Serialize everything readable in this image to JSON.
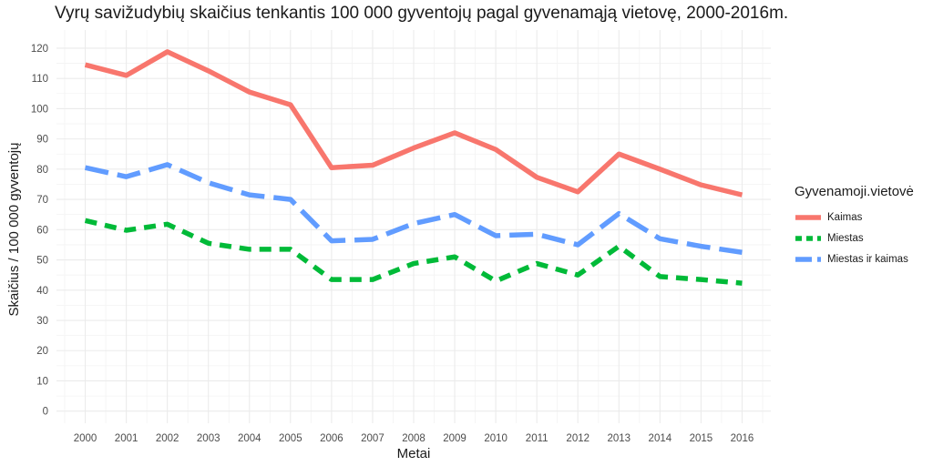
{
  "title": "Vyrų savižudybių skaičius tenkantis 100 000 gyventojų pagal gyvenamąją vietovę, 2000-2016m.",
  "chart_data": {
    "type": "line",
    "title": "Vyrų savižudybių skaičius tenkantis 100 000 gyventojų pagal gyvenamąją vietovę, 2000-2016m.",
    "xlabel": "Metai",
    "ylabel": "Skaičius / 100 000 gyventojų",
    "x": [
      2000,
      2001,
      2002,
      2003,
      2004,
      2005,
      2006,
      2007,
      2008,
      2009,
      2010,
      2011,
      2012,
      2013,
      2014,
      2015,
      2016
    ],
    "x_ticks": [
      "2000",
      "2001",
      "2002",
      "2003",
      "2004",
      "2005",
      "2006",
      "2007",
      "2008",
      "2009",
      "2010",
      "2011",
      "2012",
      "2013",
      "2014",
      "2015",
      "2016"
    ],
    "y_ticks": [
      "0",
      "10",
      "20",
      "30",
      "40",
      "50",
      "60",
      "70",
      "80",
      "90",
      "100",
      "110",
      "120"
    ],
    "ylim": [
      -4,
      126
    ],
    "grid": true,
    "legend_title": "Gyvenamoji.vietovė",
    "legend_position": "right",
    "series": [
      {
        "name": "Kaimas",
        "color": "#F8766D",
        "dash": "solid",
        "values": [
          114.5,
          111,
          118.8,
          112.5,
          105.5,
          101.3,
          80.5,
          81.3,
          87,
          92,
          86.5,
          77.3,
          72.5,
          85,
          80,
          74.8,
          71.5
        ]
      },
      {
        "name": "Miestas",
        "color": "#00BA38",
        "dash": "dashed",
        "values": [
          63,
          59.8,
          61.8,
          55.5,
          53.5,
          53.5,
          43.5,
          43.5,
          48.8,
          51,
          43,
          48.8,
          45,
          54.5,
          44.5,
          43.5,
          42.3
        ]
      },
      {
        "name": "Miestas ir kaimas",
        "color": "#619CFF",
        "dash": "longdash",
        "values": [
          80.5,
          77.5,
          81.5,
          75.5,
          71.5,
          70,
          56.3,
          56.8,
          62,
          65,
          58,
          58.5,
          55,
          65.3,
          57,
          54.5,
          52.5
        ]
      }
    ]
  }
}
